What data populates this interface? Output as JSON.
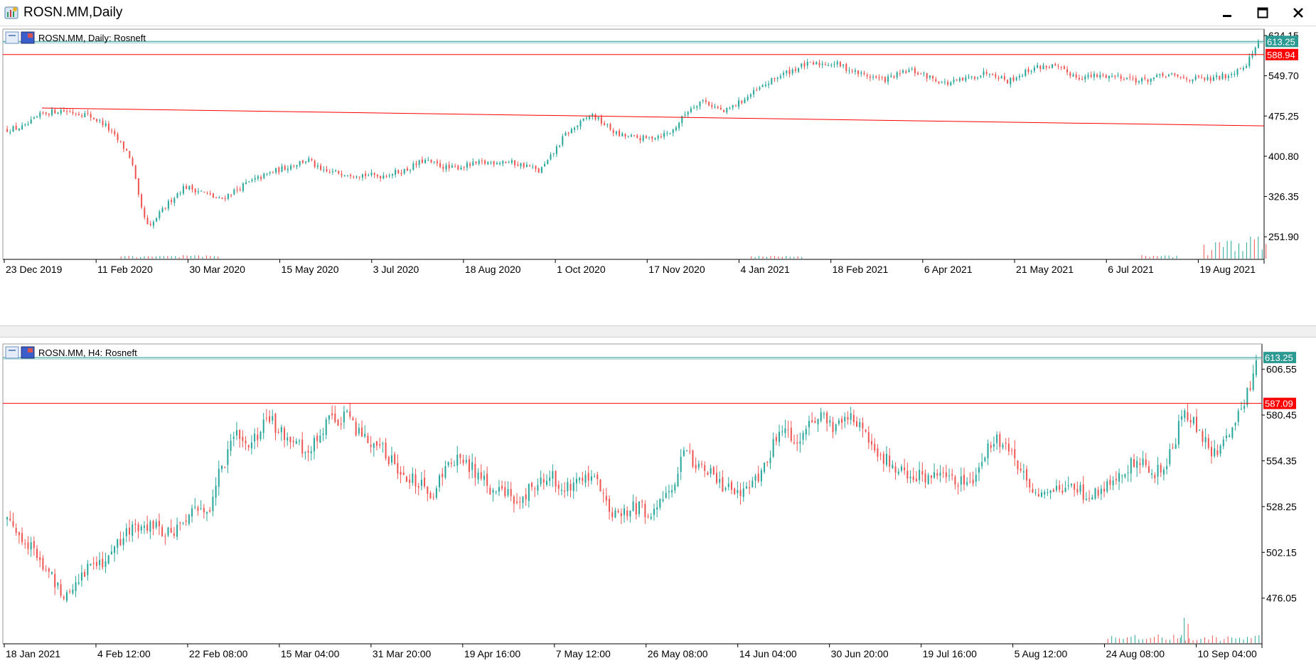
{
  "window": {
    "title": "ROSN.MM,Daily"
  },
  "colors": {
    "bull": "#26a69a",
    "bear": "#ef5350",
    "level_red": "#ff0000",
    "level_teal": "#2b9a93",
    "axis": "#000000"
  },
  "chart_data": [
    {
      "type": "candlestick",
      "title": "ROSN.MM, Daily:  Rosneft",
      "timeframe": "Daily",
      "symbol": "ROSN.MM",
      "y_ticks": [
        624.15,
        549.7,
        475.25,
        400.8,
        326.35,
        251.9
      ],
      "ylim": [
        210,
        636
      ],
      "x_ticks": [
        "23 Dec 2019",
        "11 Feb 2020",
        "30 Mar 2020",
        "15 May 2020",
        "3 Jul 2020",
        "18 Aug 2020",
        "1 Oct 2020",
        "17 Nov 2020",
        "4 Jan 2021",
        "18 Feb 2021",
        "6 Apr 2021",
        "21 May 2021",
        "6 Jul 2021",
        "19 Aug 2021"
      ],
      "price_labels": {
        "current": "613.25",
        "level": "588.94"
      },
      "current_price": 613.25,
      "horizontal_level": 588.94,
      "trendline": {
        "start": [
          0.031,
          490
        ],
        "end": [
          1.0,
          457
        ]
      },
      "anchors": [
        [
          0,
          450
        ],
        [
          0.02,
          455
        ],
        [
          0.04,
          480
        ],
        [
          0.06,
          486
        ],
        [
          0.09,
          478
        ],
        [
          0.11,
          460
        ],
        [
          0.135,
          410
        ],
        [
          0.14,
          395
        ],
        [
          0.145,
          355
        ],
        [
          0.15,
          310
        ],
        [
          0.16,
          265
        ],
        [
          0.17,
          290
        ],
        [
          0.185,
          320
        ],
        [
          0.2,
          345
        ],
        [
          0.22,
          335
        ],
        [
          0.24,
          320
        ],
        [
          0.27,
          350
        ],
        [
          0.3,
          372
        ],
        [
          0.34,
          395
        ],
        [
          0.355,
          372
        ],
        [
          0.38,
          370
        ],
        [
          0.42,
          364
        ],
        [
          0.45,
          375
        ],
        [
          0.47,
          393
        ],
        [
          0.5,
          378
        ],
        [
          0.53,
          387
        ],
        [
          0.56,
          392
        ],
        [
          0.59,
          382
        ],
        [
          0.6,
          372
        ],
        [
          0.61,
          390
        ],
        [
          0.63,
          440
        ],
        [
          0.66,
          478
        ],
        [
          0.69,
          440
        ],
        [
          0.72,
          433
        ],
        [
          0.75,
          445
        ],
        [
          0.77,
          488
        ],
        [
          0.785,
          505
        ],
        [
          0.81,
          482
        ],
        [
          0.84,
          515
        ],
        [
          0.87,
          548
        ],
        [
          0.9,
          570
        ],
        [
          0.935,
          573
        ],
        [
          0.96,
          555
        ],
        [
          0.99,
          542
        ],
        [
          1.02,
          560
        ],
        [
          1.045,
          545
        ],
        [
          1.06,
          535
        ],
        [
          1.08,
          542
        ],
        [
          1.11,
          558
        ],
        [
          1.13,
          540
        ],
        [
          1.16,
          565
        ],
        [
          1.18,
          568
        ],
        [
          1.21,
          547
        ],
        [
          1.24,
          550
        ],
        [
          1.26,
          548
        ],
        [
          1.28,
          540
        ],
        [
          1.31,
          551
        ],
        [
          1.33,
          545
        ],
        [
          1.36,
          543
        ],
        [
          1.38,
          552
        ],
        [
          1.4,
          573
        ],
        [
          1.413,
          612
        ]
      ],
      "volume_ranges": [
        [
          0.13,
          0.24,
          0.1
        ],
        [
          0.84,
          0.9,
          0.07
        ],
        [
          1.28,
          1.32,
          0.1
        ],
        [
          1.35,
          1.42,
          1.0
        ]
      ]
    },
    {
      "type": "candlestick",
      "title": "ROSN.MM, H4:  Rosneft",
      "timeframe": "H4",
      "symbol": "ROSN.MM",
      "y_ticks": [
        606.55,
        580.45,
        554.35,
        528.25,
        502.15,
        476.05
      ],
      "ylim": [
        450,
        621
      ],
      "x_ticks": [
        "18 Jan 2021",
        "4 Feb 12:00",
        "22 Feb 08:00",
        "15 Mar 04:00",
        "31 Mar 20:00",
        "19 Apr 16:00",
        "7 May 12:00",
        "26 May 08:00",
        "14 Jun 04:00",
        "30 Jun 20:00",
        "19 Jul 16:00",
        "5 Aug 12:00",
        "24 Aug 08:00",
        "10 Sep 04:00"
      ],
      "price_labels": {
        "current": "613.25",
        "level": "587.09"
      },
      "current_price": 613.25,
      "horizontal_level": 587.09,
      "anchors": [
        [
          0,
          522
        ],
        [
          0.02,
          508
        ],
        [
          0.04,
          492
        ],
        [
          0.06,
          478
        ],
        [
          0.08,
          492
        ],
        [
          0.1,
          498
        ],
        [
          0.12,
          510
        ],
        [
          0.14,
          520
        ],
        [
          0.17,
          512
        ],
        [
          0.19,
          524
        ],
        [
          0.21,
          528
        ],
        [
          0.22,
          548
        ],
        [
          0.24,
          572
        ],
        [
          0.25,
          560
        ],
        [
          0.27,
          578
        ],
        [
          0.3,
          565
        ],
        [
          0.31,
          555
        ],
        [
          0.33,
          575
        ],
        [
          0.35,
          580
        ],
        [
          0.37,
          568
        ],
        [
          0.39,
          560
        ],
        [
          0.41,
          548
        ],
        [
          0.44,
          535
        ],
        [
          0.46,
          555
        ],
        [
          0.48,
          552
        ],
        [
          0.5,
          538
        ],
        [
          0.53,
          532
        ],
        [
          0.56,
          546
        ],
        [
          0.58,
          540
        ],
        [
          0.6,
          548
        ],
        [
          0.61,
          545
        ],
        [
          0.625,
          522
        ],
        [
          0.65,
          528
        ],
        [
          0.67,
          525
        ],
        [
          0.69,
          540
        ],
        [
          0.7,
          558
        ],
        [
          0.72,
          552
        ],
        [
          0.74,
          540
        ],
        [
          0.76,
          537
        ],
        [
          0.78,
          545
        ],
        [
          0.8,
          570
        ],
        [
          0.82,
          566
        ],
        [
          0.84,
          582
        ],
        [
          0.855,
          573
        ],
        [
          0.87,
          580
        ],
        [
          0.88,
          578
        ],
        [
          0.9,
          562
        ],
        [
          0.92,
          550
        ],
        [
          0.94,
          545
        ],
        [
          0.96,
          545
        ],
        [
          0.98,
          542
        ],
        [
          1.0,
          541
        ],
        [
          1.02,
          565
        ],
        [
          1.03,
          566
        ],
        [
          1.05,
          550
        ],
        [
          1.07,
          535
        ],
        [
          1.1,
          540
        ],
        [
          1.12,
          535
        ],
        [
          1.14,
          540
        ],
        [
          1.17,
          555
        ],
        [
          1.19,
          548
        ],
        [
          1.2,
          548
        ],
        [
          1.22,
          582
        ],
        [
          1.24,
          568
        ],
        [
          1.25,
          556
        ],
        [
          1.26,
          565
        ],
        [
          1.28,
          582
        ],
        [
          1.295,
          608
        ]
      ],
      "volume_ranges": [
        [
          1.14,
          1.3,
          0.25
        ],
        [
          1.215,
          1.225,
          1.0
        ]
      ]
    }
  ]
}
